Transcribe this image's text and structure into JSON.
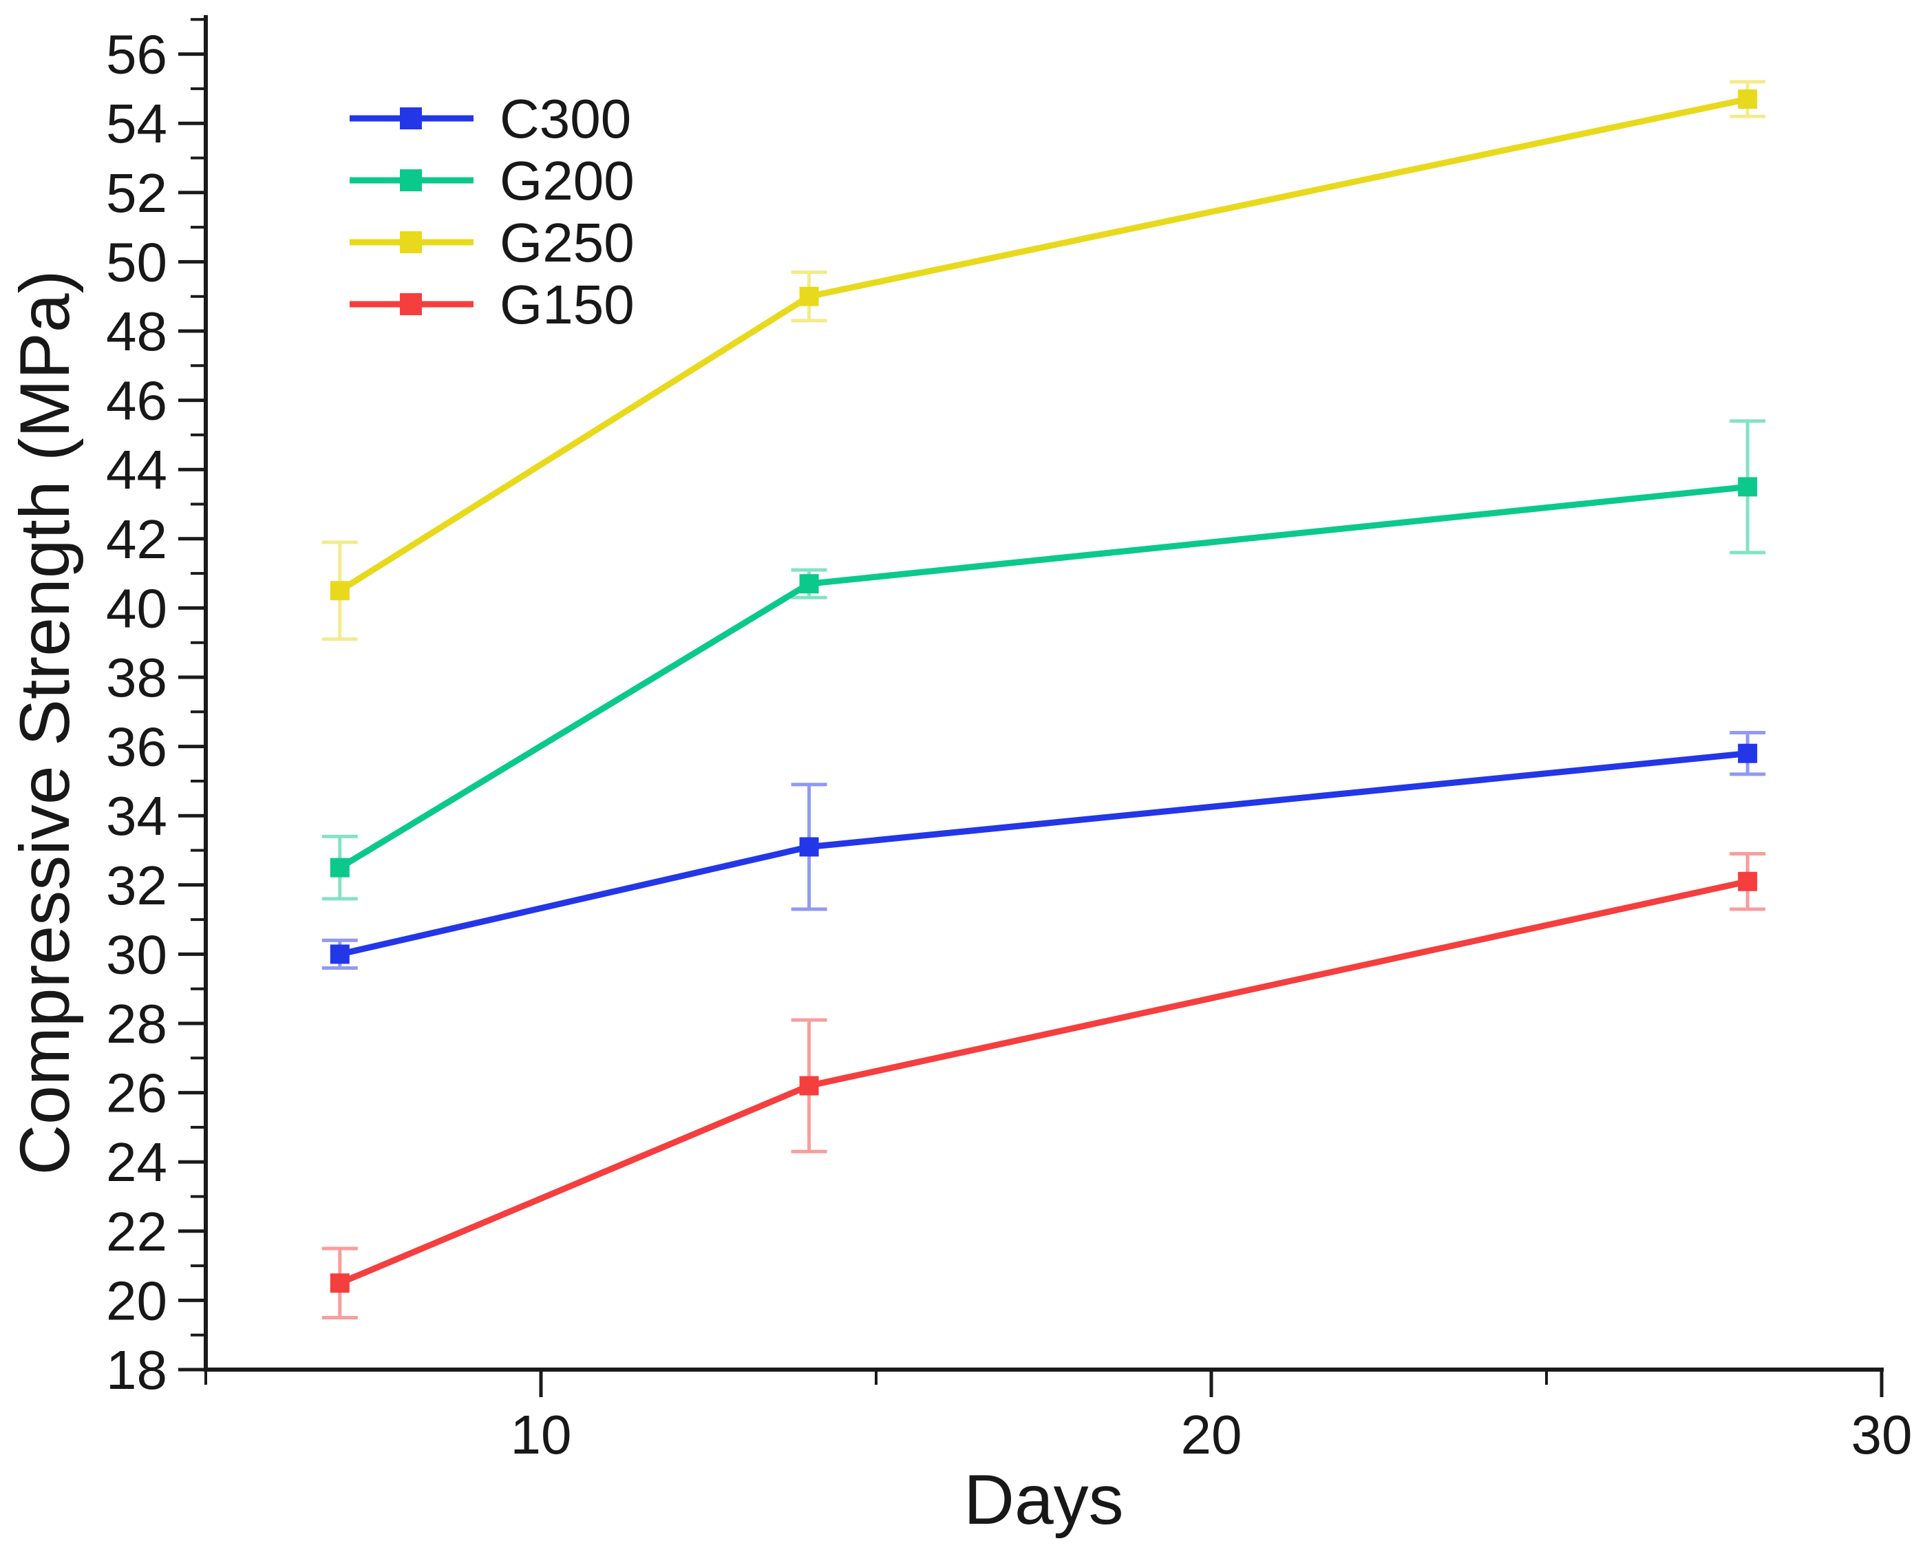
{
  "figure": {
    "background": "#ffffff",
    "axis_color": "#1a1a1a",
    "text_color": "#181818"
  },
  "chart_data": {
    "type": "line",
    "title": "",
    "xlabel": "Days",
    "ylabel": "Compressive Strength (MPa)",
    "x": [
      7,
      14,
      28
    ],
    "xlim": [
      5,
      30
    ],
    "ylim": [
      18,
      57
    ],
    "x_major_ticks": [
      10,
      20,
      30
    ],
    "x_minor_ticks": [
      5,
      15,
      25
    ],
    "y_major_ticks": [
      18,
      20,
      22,
      24,
      26,
      28,
      30,
      32,
      34,
      36,
      38,
      40,
      42,
      44,
      46,
      48,
      50,
      52,
      54,
      56
    ],
    "y_minor_ticks": [
      19,
      21,
      23,
      25,
      27,
      29,
      31,
      33,
      35,
      37,
      39,
      41,
      43,
      45,
      47,
      49,
      51,
      53,
      55,
      57
    ],
    "grid": false,
    "legend_position": "top-left",
    "marker": "square",
    "error_bars": true,
    "series": [
      {
        "name": "C300",
        "color": "#2336E8",
        "values": [
          30.0,
          33.1,
          35.8
        ],
        "errors": [
          0.4,
          1.8,
          0.6
        ]
      },
      {
        "name": "G200",
        "color": "#0BC98B",
        "values": [
          32.5,
          40.7,
          43.5
        ],
        "errors": [
          0.9,
          0.4,
          1.9
        ]
      },
      {
        "name": "G250",
        "color": "#E8D91C",
        "values": [
          40.5,
          49.0,
          54.7
        ],
        "errors": [
          1.4,
          0.7,
          0.5
        ]
      },
      {
        "name": "G150",
        "color": "#F53E3E",
        "values": [
          20.5,
          26.2,
          32.1
        ],
        "errors": [
          1.0,
          1.9,
          0.8
        ]
      }
    ],
    "legend_entries": [
      "C300",
      "G200",
      "G250",
      "G150"
    ]
  }
}
